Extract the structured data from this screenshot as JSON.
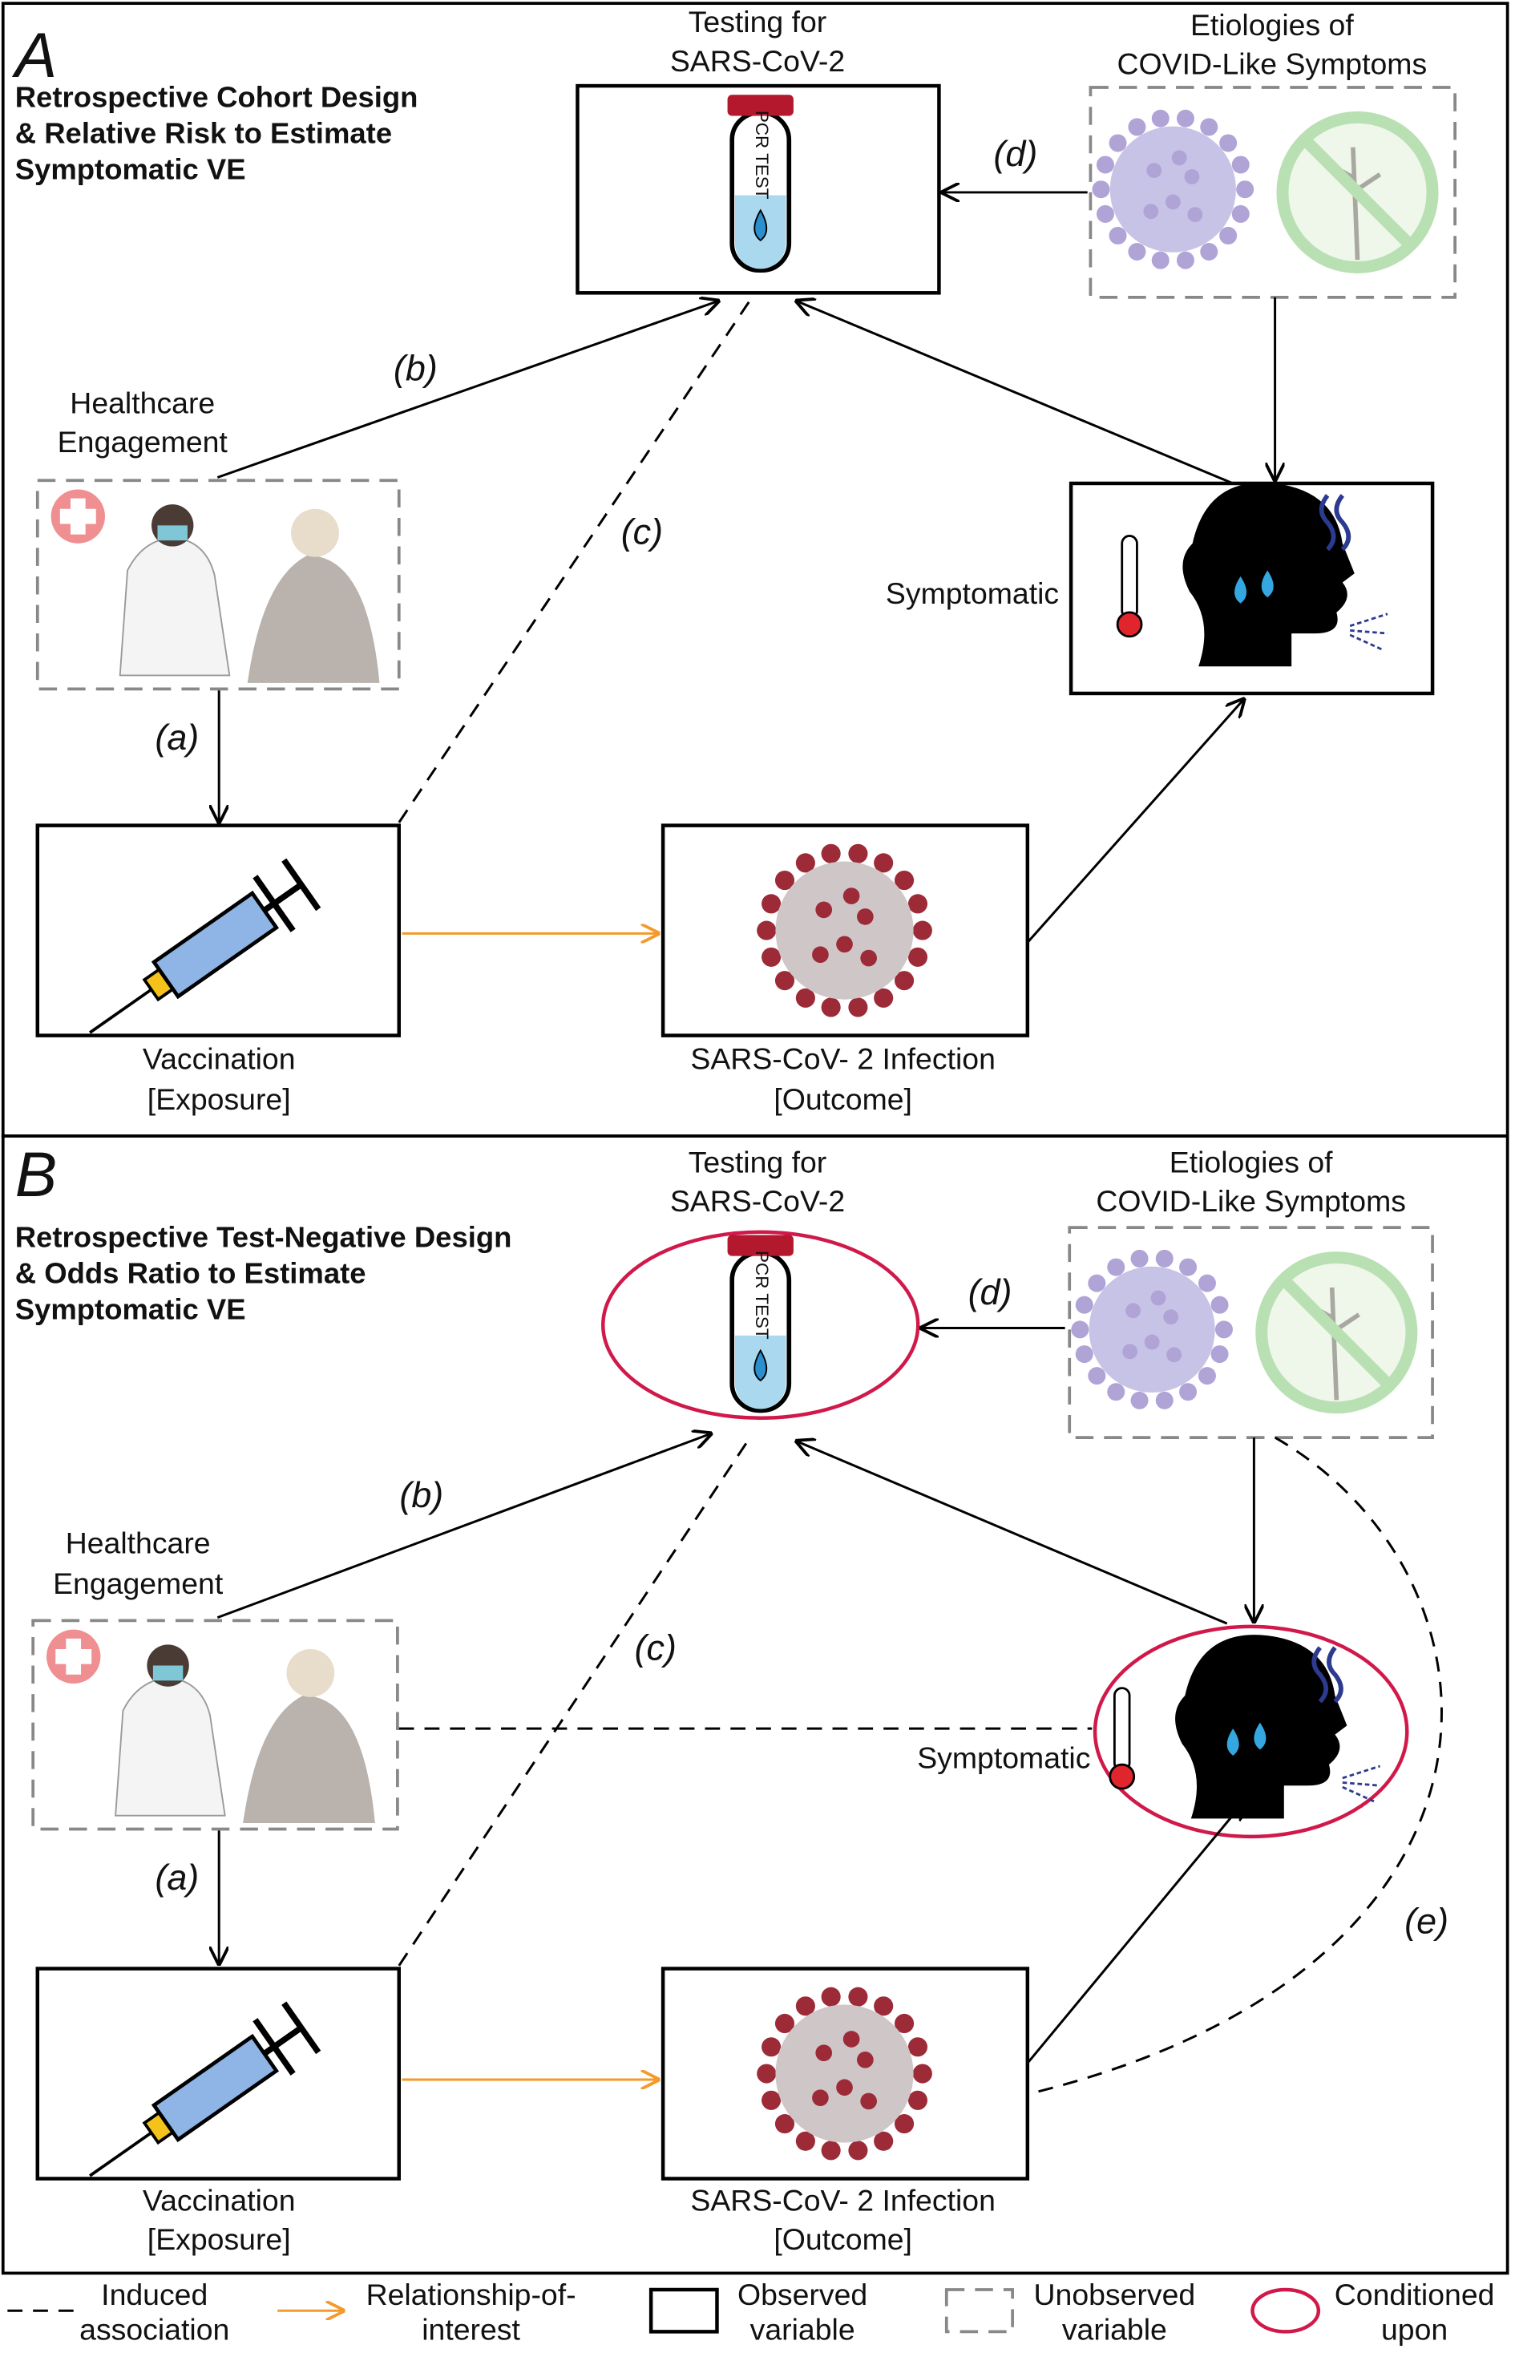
{
  "panels": [
    {
      "letter": "A",
      "title": [
        "Retrospective Cohort Design",
        "& Relative Risk to Estimate",
        "Symptomatic VE"
      ],
      "testing": [
        "Testing for",
        "SARS-CoV-2"
      ],
      "etiologies": [
        "Etiologies of",
        "COVID-Like Symptoms"
      ],
      "healthcare": [
        "Healthcare",
        "Engagement"
      ],
      "symptomatic": "Symptomatic",
      "vaccination": [
        "Vaccination",
        "[Exposure]"
      ],
      "infection": [
        "SARS-CoV- 2 Infection",
        "[Outcome]"
      ],
      "edge_labels": [
        "(a)",
        "(b)",
        "(c)",
        "(d)"
      ]
    },
    {
      "letter": "B",
      "title": [
        "Retrospective Test-Negative Design",
        "& Odds Ratio to Estimate",
        "Symptomatic VE"
      ],
      "testing": [
        "Testing for",
        "SARS-CoV-2"
      ],
      "etiologies": [
        "Etiologies of",
        "COVID-Like Symptoms"
      ],
      "healthcare": [
        "Healthcare",
        "Engagement"
      ],
      "symptomatic": "Symptomatic",
      "vaccination": [
        "Vaccination",
        "[Exposure]"
      ],
      "infection": [
        "SARS-CoV- 2 Infection",
        "[Outcome]"
      ],
      "edge_labels": [
        "(a)",
        "(b)",
        "(c)",
        "(d)",
        "(e)"
      ]
    }
  ],
  "legend": [
    {
      "label": [
        "Induced",
        "association"
      ]
    },
    {
      "label": [
        "Relationship-of-",
        "interest"
      ]
    },
    {
      "label": [
        "Observed",
        "variable"
      ]
    },
    {
      "label": [
        "Unobserved",
        "variable"
      ]
    },
    {
      "label": [
        "Conditioned",
        "upon"
      ]
    }
  ]
}
